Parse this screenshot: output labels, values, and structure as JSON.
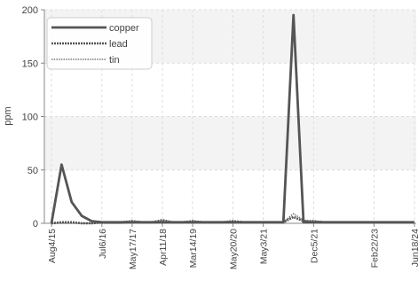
{
  "chart_data": {
    "type": "line",
    "title": "",
    "xlabel": "",
    "ylabel": "ppm",
    "ylim": [
      0,
      200
    ],
    "yticks": [
      0,
      50,
      100,
      150,
      200
    ],
    "x": [
      "Aug4/15",
      "Oct1/15",
      "Nov28/15",
      "Jan25/16",
      "Mar23/16",
      "Jul6/16",
      "Oct1/16",
      "Jan10/17",
      "May17/17",
      "Sep1/17",
      "Dec20/17",
      "Apr11/18",
      "Aug1/18",
      "Nov20/18",
      "Mar14/19",
      "Jul8/19",
      "Nov2/19",
      "Mar1/20",
      "May20/20",
      "Sep15/20",
      "Jan10/21",
      "May3/21",
      "Jul20/21",
      "Aug25/21",
      "Oct1/21",
      "Nov5/21",
      "Dec5/21",
      "Feb1/22",
      "Apr1/22",
      "Jun1/22",
      "Sep1/22",
      "Dec1/22",
      "Feb22/23",
      "Jun1/23",
      "Oct1/23",
      "Feb1/24",
      "Jun18/24"
    ],
    "xticks": [
      "Aug4/15",
      "Jul6/16",
      "May17/17",
      "Apr11/18",
      "Mar14/19",
      "May20/20",
      "May3/21",
      "Dec5/21",
      "Feb22/23",
      "Jun18/24"
    ],
    "series": [
      {
        "name": "copper",
        "color": "#555555",
        "style": "solid",
        "values": [
          0,
          55,
          20,
          7,
          2,
          1,
          1,
          1,
          1,
          1,
          1,
          1,
          1,
          1,
          1,
          1,
          1,
          1,
          1,
          1,
          1,
          1,
          1,
          1,
          195,
          1,
          1,
          1,
          1,
          1,
          1,
          1,
          1,
          1,
          1,
          1,
          1
        ]
      },
      {
        "name": "lead",
        "color": "#555555",
        "style": "dense-dashed",
        "values": [
          0,
          1,
          1,
          0,
          0,
          1,
          1,
          1,
          2,
          1,
          1,
          3,
          1,
          1,
          2,
          1,
          1,
          1,
          2,
          1,
          1,
          1,
          1,
          1,
          6,
          2,
          2,
          1,
          1,
          1,
          1,
          1,
          1,
          1,
          1,
          1,
          1
        ]
      },
      {
        "name": "tin",
        "color": "#777777",
        "style": "dotted",
        "values": [
          0,
          0,
          0,
          0,
          0,
          0,
          0,
          0,
          1,
          1,
          1,
          1,
          1,
          1,
          1,
          1,
          1,
          1,
          1,
          1,
          1,
          1,
          1,
          1,
          9,
          3,
          1,
          1,
          1,
          1,
          1,
          1,
          1,
          1,
          1,
          1,
          1
        ]
      }
    ],
    "legend_position": "top-left",
    "grid": true
  }
}
